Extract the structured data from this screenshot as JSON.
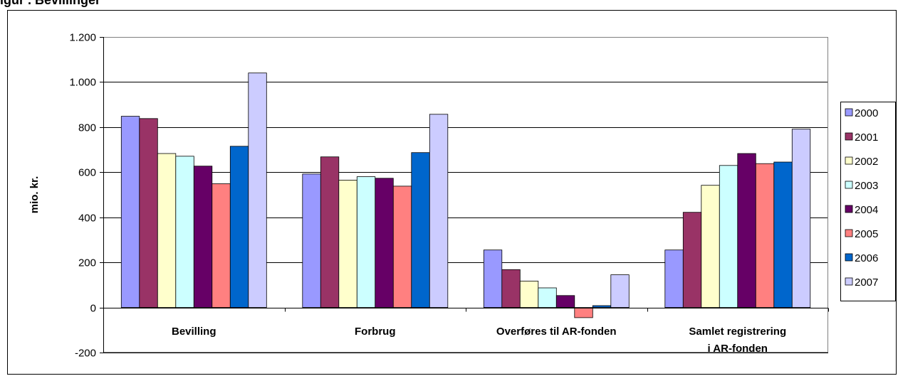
{
  "heading": "igur  .  Bevillinger",
  "chart_data": {
    "type": "bar",
    "title": "",
    "xlabel": "",
    "ylabel": "mio. kr.",
    "ylim": [
      -200,
      1200
    ],
    "yticks": [
      -200,
      0,
      200,
      400,
      600,
      800,
      1000,
      1200
    ],
    "ytick_labels": [
      "-200",
      "0",
      "200",
      "400",
      "600",
      "800",
      "1.000",
      "1.200"
    ],
    "grid": true,
    "legend_position": "right",
    "categories": [
      "Bevilling",
      "Forbrug",
      "Overføres til AR-fonden",
      "Samlet registrering i AR-fonden"
    ],
    "series": [
      {
        "name": "2000",
        "color": "#9999FF",
        "values": [
          848,
          592,
          255,
          255
        ]
      },
      {
        "name": "2001",
        "color": "#993366",
        "values": [
          838,
          668,
          168,
          422
        ]
      },
      {
        "name": "2002",
        "color": "#FFFFCC",
        "values": [
          683,
          565,
          117,
          542
        ]
      },
      {
        "name": "2003",
        "color": "#CCFFFF",
        "values": [
          671,
          580,
          87,
          630
        ]
      },
      {
        "name": "2004",
        "color": "#660066",
        "values": [
          627,
          573,
          53,
          683
        ]
      },
      {
        "name": "2005",
        "color": "#FF8080",
        "values": [
          549,
          538,
          -45,
          638
        ]
      },
      {
        "name": "2006",
        "color": "#0066CC",
        "values": [
          715,
          687,
          8,
          645
        ]
      },
      {
        "name": "2007",
        "color": "#CCCCFF",
        "values": [
          1040,
          857,
          145,
          791
        ]
      }
    ]
  }
}
